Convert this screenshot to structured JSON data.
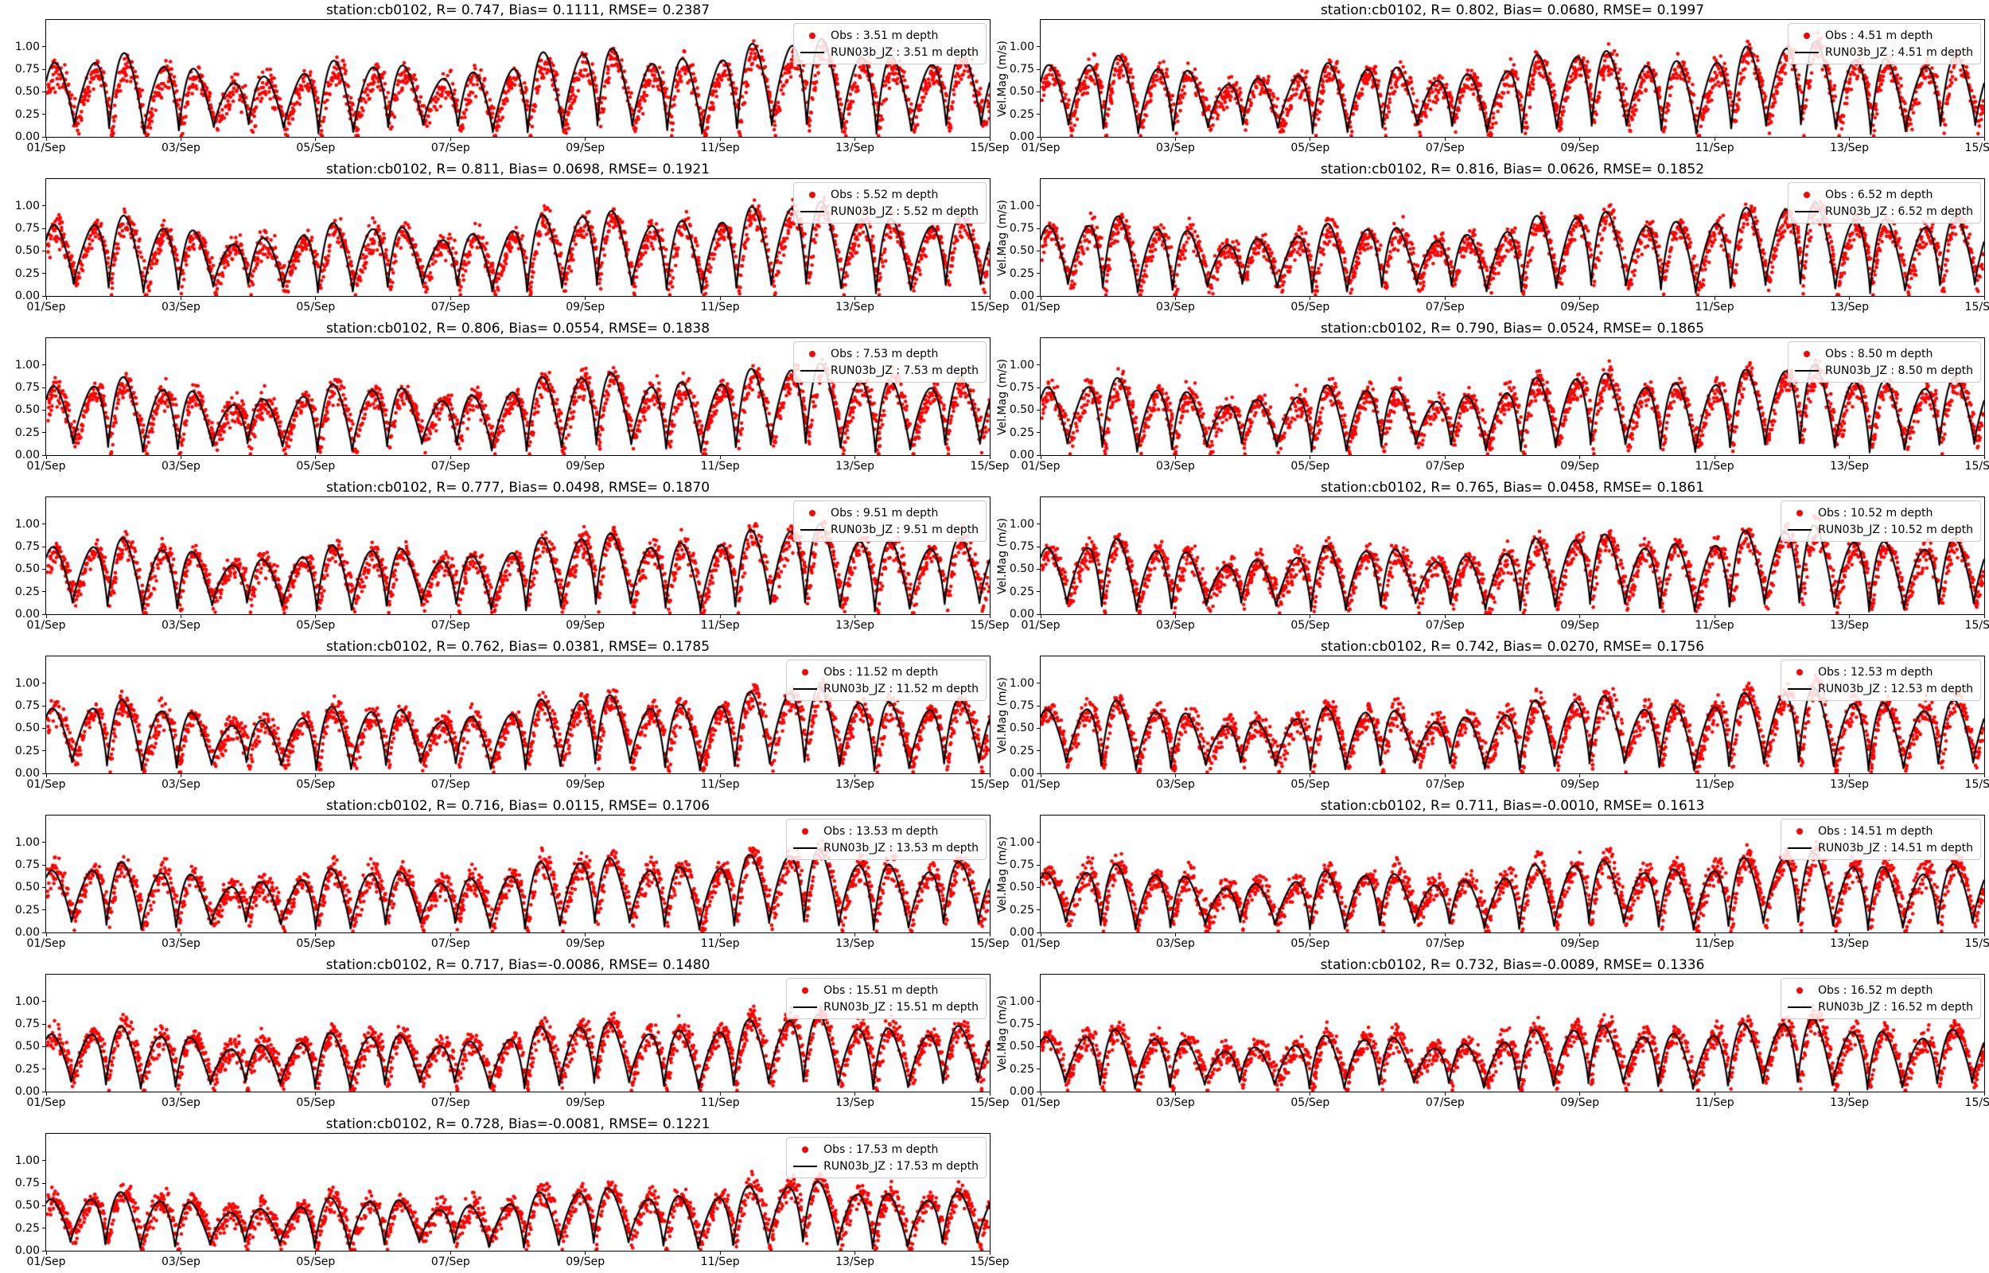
{
  "figure": {
    "station_label": "station:cb0102",
    "right_col_ylabel": "Vel.Mag (m/s)",
    "x_tick_labels": [
      "01/Sep",
      "03/Sep",
      "05/Sep",
      "07/Sep",
      "09/Sep",
      "11/Sep",
      "13/Sep",
      "15/Sep"
    ],
    "y_tick_labels": [
      "0.00",
      "0.25",
      "0.50",
      "0.75",
      "1.00"
    ],
    "y_tick_values": [
      0,
      0.25,
      0.5,
      0.75,
      1.0
    ],
    "ylim": [
      0,
      1.3
    ],
    "x_range_days": 14,
    "grid": "off",
    "legend_position": "upper right",
    "colors": {
      "obs": "#ff0000",
      "model": "#000000",
      "legend_border": "#cccccc",
      "text": "#000000",
      "background": "#ffffff"
    }
  },
  "chart_data": [
    {
      "type": "scatter+line",
      "col": "left",
      "title": "station:cb0102, R= 0.747, Bias= 0.1111, RMSE= 0.2387",
      "R": 0.747,
      "Bias": 0.1111,
      "RMSE": 0.2387,
      "depth_m": 3.51,
      "x_range": [
        "01/Sep",
        "15/Sep"
      ],
      "ylim": [
        0,
        1.3
      ],
      "series": [
        {
          "name": "Obs",
          "style": "red-dots"
        },
        {
          "name": "RUN03b_JZ",
          "style": "black-line"
        }
      ],
      "legend": [
        {
          "marker": "red-dot",
          "label": "Obs : 3.51 m depth"
        },
        {
          "marker": "black-line",
          "label": "RUN03b_JZ : 3.51 m depth"
        }
      ],
      "synth": {
        "seed": 11,
        "amp": 1.0
      }
    },
    {
      "type": "scatter+line",
      "col": "right",
      "title": "station:cb0102, R= 0.802, Bias= 0.0680, RMSE= 0.1997",
      "R": 0.802,
      "Bias": 0.068,
      "RMSE": 0.1997,
      "depth_m": 4.51,
      "x_range": [
        "01/Sep",
        "15/Sep"
      ],
      "ylim": [
        0,
        1.3
      ],
      "series": [
        {
          "name": "Obs",
          "style": "red-dots"
        },
        {
          "name": "RUN03b_JZ",
          "style": "black-line"
        }
      ],
      "legend": [
        {
          "marker": "red-dot",
          "label": "Obs : 4.51 m depth"
        },
        {
          "marker": "black-line",
          "label": "RUN03b_JZ : 4.51 m depth"
        }
      ],
      "synth": {
        "seed": 22,
        "amp": 0.97
      }
    },
    {
      "type": "scatter+line",
      "col": "left",
      "title": "station:cb0102, R= 0.811, Bias= 0.0698, RMSE= 0.1921",
      "R": 0.811,
      "Bias": 0.0698,
      "RMSE": 0.1921,
      "depth_m": 5.52,
      "x_range": [
        "01/Sep",
        "15/Sep"
      ],
      "ylim": [
        0,
        1.3
      ],
      "series": [
        {
          "name": "Obs",
          "style": "red-dots"
        },
        {
          "name": "RUN03b_JZ",
          "style": "black-line"
        }
      ],
      "legend": [
        {
          "marker": "red-dot",
          "label": "Obs : 5.52 m depth"
        },
        {
          "marker": "black-line",
          "label": "RUN03b_JZ : 5.52 m depth"
        }
      ],
      "synth": {
        "seed": 33,
        "amp": 0.96
      }
    },
    {
      "type": "scatter+line",
      "col": "right",
      "title": "station:cb0102, R= 0.816, Bias= 0.0626, RMSE= 0.1852",
      "R": 0.816,
      "Bias": 0.0626,
      "RMSE": 0.1852,
      "depth_m": 6.52,
      "x_range": [
        "01/Sep",
        "15/Sep"
      ],
      "ylim": [
        0,
        1.3
      ],
      "series": [
        {
          "name": "Obs",
          "style": "red-dots"
        },
        {
          "name": "RUN03b_JZ",
          "style": "black-line"
        }
      ],
      "legend": [
        {
          "marker": "red-dot",
          "label": "Obs : 6.52 m depth"
        },
        {
          "marker": "black-line",
          "label": "RUN03b_JZ : 6.52 m depth"
        }
      ],
      "synth": {
        "seed": 44,
        "amp": 0.95
      }
    },
    {
      "type": "scatter+line",
      "col": "left",
      "title": "station:cb0102, R= 0.806, Bias= 0.0554, RMSE= 0.1838",
      "R": 0.806,
      "Bias": 0.0554,
      "RMSE": 0.1838,
      "depth_m": 7.53,
      "x_range": [
        "01/Sep",
        "15/Sep"
      ],
      "ylim": [
        0,
        1.3
      ],
      "series": [
        {
          "name": "Obs",
          "style": "red-dots"
        },
        {
          "name": "RUN03b_JZ",
          "style": "black-line"
        }
      ],
      "legend": [
        {
          "marker": "red-dot",
          "label": "Obs : 7.53 m depth"
        },
        {
          "marker": "black-line",
          "label": "RUN03b_JZ : 7.53 m depth"
        }
      ],
      "synth": {
        "seed": 55,
        "amp": 0.93
      }
    },
    {
      "type": "scatter+line",
      "col": "right",
      "title": "station:cb0102, R= 0.790, Bias= 0.0524, RMSE= 0.1865",
      "R": 0.79,
      "Bias": 0.0524,
      "RMSE": 0.1865,
      "depth_m": 8.5,
      "x_range": [
        "01/Sep",
        "15/Sep"
      ],
      "ylim": [
        0,
        1.3
      ],
      "series": [
        {
          "name": "Obs",
          "style": "red-dots"
        },
        {
          "name": "RUN03b_JZ",
          "style": "black-line"
        }
      ],
      "legend": [
        {
          "marker": "red-dot",
          "label": "Obs : 8.50 m depth"
        },
        {
          "marker": "black-line",
          "label": "RUN03b_JZ : 8.50 m depth"
        }
      ],
      "synth": {
        "seed": 66,
        "amp": 0.92
      }
    },
    {
      "type": "scatter+line",
      "col": "left",
      "title": "station:cb0102, R= 0.777, Bias= 0.0498, RMSE= 0.1870",
      "R": 0.777,
      "Bias": 0.0498,
      "RMSE": 0.187,
      "depth_m": 9.51,
      "x_range": [
        "01/Sep",
        "15/Sep"
      ],
      "ylim": [
        0,
        1.3
      ],
      "series": [
        {
          "name": "Obs",
          "style": "red-dots"
        },
        {
          "name": "RUN03b_JZ",
          "style": "black-line"
        }
      ],
      "legend": [
        {
          "marker": "red-dot",
          "label": "Obs : 9.51 m depth"
        },
        {
          "marker": "black-line",
          "label": "RUN03b_JZ : 9.51 m depth"
        }
      ],
      "synth": {
        "seed": 77,
        "amp": 0.91
      }
    },
    {
      "type": "scatter+line",
      "col": "right",
      "title": "station:cb0102, R= 0.765, Bias= 0.0458, RMSE= 0.1861",
      "R": 0.765,
      "Bias": 0.0458,
      "RMSE": 0.1861,
      "depth_m": 10.52,
      "x_range": [
        "01/Sep",
        "15/Sep"
      ],
      "ylim": [
        0,
        1.3
      ],
      "series": [
        {
          "name": "Obs",
          "style": "red-dots"
        },
        {
          "name": "RUN03b_JZ",
          "style": "black-line"
        }
      ],
      "legend": [
        {
          "marker": "red-dot",
          "label": "Obs : 10.52 m depth"
        },
        {
          "marker": "black-line",
          "label": "RUN03b_JZ : 10.52 m depth"
        }
      ],
      "synth": {
        "seed": 88,
        "amp": 0.9
      }
    },
    {
      "type": "scatter+line",
      "col": "left",
      "title": "station:cb0102, R= 0.762, Bias= 0.0381, RMSE= 0.1785",
      "R": 0.762,
      "Bias": 0.0381,
      "RMSE": 0.1785,
      "depth_m": 11.52,
      "x_range": [
        "01/Sep",
        "15/Sep"
      ],
      "ylim": [
        0,
        1.3
      ],
      "series": [
        {
          "name": "Obs",
          "style": "red-dots"
        },
        {
          "name": "RUN03b_JZ",
          "style": "black-line"
        }
      ],
      "legend": [
        {
          "marker": "red-dot",
          "label": "Obs : 11.52 m depth"
        },
        {
          "marker": "black-line",
          "label": "RUN03b_JZ : 11.52 m depth"
        }
      ],
      "synth": {
        "seed": 99,
        "amp": 0.88
      }
    },
    {
      "type": "scatter+line",
      "col": "right",
      "title": "station:cb0102, R= 0.742, Bias= 0.0270, RMSE= 0.1756",
      "R": 0.742,
      "Bias": 0.027,
      "RMSE": 0.1756,
      "depth_m": 12.53,
      "x_range": [
        "01/Sep",
        "15/Sep"
      ],
      "ylim": [
        0,
        1.3
      ],
      "series": [
        {
          "name": "Obs",
          "style": "red-dots"
        },
        {
          "name": "RUN03b_JZ",
          "style": "black-line"
        }
      ],
      "legend": [
        {
          "marker": "red-dot",
          "label": "Obs : 12.53 m depth"
        },
        {
          "marker": "black-line",
          "label": "RUN03b_JZ : 12.53 m depth"
        }
      ],
      "synth": {
        "seed": 110,
        "amp": 0.87
      }
    },
    {
      "type": "scatter+line",
      "col": "left",
      "title": "station:cb0102, R= 0.716, Bias= 0.0115, RMSE= 0.1706",
      "R": 0.716,
      "Bias": 0.0115,
      "RMSE": 0.1706,
      "depth_m": 13.53,
      "x_range": [
        "01/Sep",
        "15/Sep"
      ],
      "ylim": [
        0,
        1.3
      ],
      "series": [
        {
          "name": "Obs",
          "style": "red-dots"
        },
        {
          "name": "RUN03b_JZ",
          "style": "black-line"
        }
      ],
      "legend": [
        {
          "marker": "red-dot",
          "label": "Obs : 13.53 m depth"
        },
        {
          "marker": "black-line",
          "label": "RUN03b_JZ : 13.53 m depth"
        }
      ],
      "synth": {
        "seed": 121,
        "amp": 0.84
      }
    },
    {
      "type": "scatter+line",
      "col": "right",
      "title": "station:cb0102, R= 0.711, Bias=-0.0010, RMSE= 0.1613",
      "R": 0.711,
      "Bias": -0.001,
      "RMSE": 0.1613,
      "depth_m": 14.51,
      "x_range": [
        "01/Sep",
        "15/Sep"
      ],
      "ylim": [
        0,
        1.3
      ],
      "series": [
        {
          "name": "Obs",
          "style": "red-dots"
        },
        {
          "name": "RUN03b_JZ",
          "style": "black-line"
        }
      ],
      "legend": [
        {
          "marker": "red-dot",
          "label": "Obs : 14.51 m depth"
        },
        {
          "marker": "black-line",
          "label": "RUN03b_JZ : 14.51 m depth"
        }
      ],
      "synth": {
        "seed": 132,
        "amp": 0.81
      }
    },
    {
      "type": "scatter+line",
      "col": "left",
      "title": "station:cb0102, R= 0.717, Bias=-0.0086, RMSE= 0.1480",
      "R": 0.717,
      "Bias": -0.0086,
      "RMSE": 0.148,
      "depth_m": 15.51,
      "x_range": [
        "01/Sep",
        "15/Sep"
      ],
      "ylim": [
        0,
        1.3
      ],
      "series": [
        {
          "name": "Obs",
          "style": "red-dots"
        },
        {
          "name": "RUN03b_JZ",
          "style": "black-line"
        }
      ],
      "legend": [
        {
          "marker": "red-dot",
          "label": "Obs : 15.51 m depth"
        },
        {
          "marker": "black-line",
          "label": "RUN03b_JZ : 15.51 m depth"
        }
      ],
      "synth": {
        "seed": 143,
        "amp": 0.78
      }
    },
    {
      "type": "scatter+line",
      "col": "right",
      "title": "station:cb0102, R= 0.732, Bias=-0.0089, RMSE= 0.1336",
      "R": 0.732,
      "Bias": -0.0089,
      "RMSE": 0.1336,
      "depth_m": 16.52,
      "x_range": [
        "01/Sep",
        "15/Sep"
      ],
      "ylim": [
        0,
        1.3
      ],
      "series": [
        {
          "name": "Obs",
          "style": "red-dots"
        },
        {
          "name": "RUN03b_JZ",
          "style": "black-line"
        }
      ],
      "legend": [
        {
          "marker": "red-dot",
          "label": "Obs : 16.52 m depth"
        },
        {
          "marker": "black-line",
          "label": "RUN03b_JZ : 16.52 m depth"
        }
      ],
      "synth": {
        "seed": 154,
        "amp": 0.74
      }
    },
    {
      "type": "scatter+line",
      "col": "left",
      "title": "station:cb0102, R= 0.728, Bias=-0.0081, RMSE= 0.1221",
      "R": 0.728,
      "Bias": -0.0081,
      "RMSE": 0.1221,
      "depth_m": 17.53,
      "x_range": [
        "01/Sep",
        "15/Sep"
      ],
      "ylim": [
        0,
        1.3
      ],
      "series": [
        {
          "name": "Obs",
          "style": "red-dots"
        },
        {
          "name": "RUN03b_JZ",
          "style": "black-line"
        }
      ],
      "legend": [
        {
          "marker": "red-dot",
          "label": "Obs : 17.53 m depth"
        },
        {
          "marker": "black-line",
          "label": "RUN03b_JZ : 17.53 m depth"
        }
      ],
      "synth": {
        "seed": 165,
        "amp": 0.7
      }
    }
  ]
}
